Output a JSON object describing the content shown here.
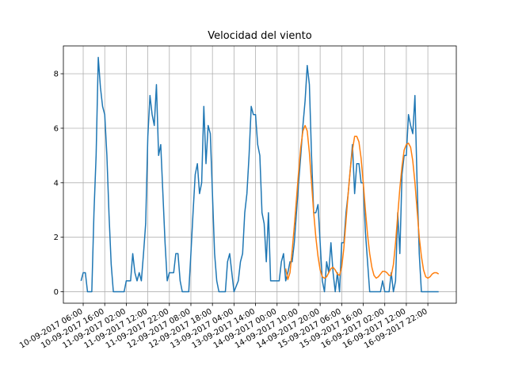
{
  "chart_data": {
    "type": "line",
    "title": "Velocidad del viento",
    "xlim": [
      "09-09-2017 20:48",
      "17-09-2017 11:12"
    ],
    "xticks": [
      "10-09-2017 06:00",
      "10-09-2017 16:00",
      "11-09-2017 02:00",
      "11-09-2017 12:00",
      "11-09-2017 22:00",
      "12-09-2017 08:00",
      "12-09-2017 18:00",
      "13-09-2017 04:00",
      "13-09-2017 14:00",
      "14-09-2017 00:00",
      "14-09-2017 10:00",
      "14-09-2017 20:00",
      "15-09-2017 06:00",
      "15-09-2017 16:00",
      "16-09-2017 02:00",
      "16-09-2017 12:00",
      "16-09-2017 22:00"
    ],
    "ylim": [
      -0.42,
      9.02
    ],
    "yticks": [
      0,
      2,
      4,
      6,
      8
    ],
    "grid": true,
    "series": [
      {
        "color": "#1f77b4",
        "x": [
          "10-09-2017 05:00",
          "10-09-2017 06:00",
          "10-09-2017 07:00",
          "10-09-2017 08:00",
          "10-09-2017 10:00",
          "10-09-2017 11:00",
          "10-09-2017 12:00",
          "10-09-2017 13:00",
          "10-09-2017 14:00",
          "10-09-2017 15:00",
          "10-09-2017 16:00",
          "10-09-2017 17:00",
          "10-09-2017 18:00",
          "10-09-2017 19:00",
          "10-09-2017 20:00",
          "11-09-2017 01:00",
          "11-09-2017 02:00",
          "11-09-2017 04:00",
          "11-09-2017 05:00",
          "11-09-2017 06:00",
          "11-09-2017 07:00",
          "11-09-2017 08:00",
          "11-09-2017 09:00",
          "11-09-2017 10:00",
          "11-09-2017 11:00",
          "11-09-2017 12:00",
          "11-09-2017 13:00",
          "11-09-2017 14:00",
          "11-09-2017 15:00",
          "11-09-2017 16:00",
          "11-09-2017 17:00",
          "11-09-2017 18:00",
          "11-09-2017 19:00",
          "11-09-2017 20:00",
          "11-09-2017 21:00",
          "11-09-2017 22:00",
          "12-09-2017 00:00",
          "12-09-2017 01:00",
          "12-09-2017 02:00",
          "12-09-2017 03:00",
          "12-09-2017 04:00",
          "12-09-2017 07:00",
          "12-09-2017 08:00",
          "12-09-2017 09:00",
          "12-09-2017 10:00",
          "12-09-2017 11:00",
          "12-09-2017 12:00",
          "12-09-2017 13:00",
          "12-09-2017 14:00",
          "12-09-2017 15:00",
          "12-09-2017 16:00",
          "12-09-2017 17:00",
          "12-09-2017 18:00",
          "12-09-2017 19:00",
          "12-09-2017 20:00",
          "12-09-2017 21:00",
          "13-09-2017 00:00",
          "13-09-2017 01:00",
          "13-09-2017 02:00",
          "13-09-2017 03:00",
          "13-09-2017 04:00",
          "13-09-2017 06:00",
          "13-09-2017 07:00",
          "13-09-2017 08:00",
          "13-09-2017 09:00",
          "13-09-2017 10:00",
          "13-09-2017 11:00",
          "13-09-2017 12:00",
          "13-09-2017 13:00",
          "13-09-2017 14:00",
          "13-09-2017 15:00",
          "13-09-2017 16:00",
          "13-09-2017 17:00",
          "13-09-2017 18:00",
          "13-09-2017 19:00",
          "13-09-2017 20:00",
          "13-09-2017 21:00",
          "14-09-2017 01:00",
          "14-09-2017 02:00",
          "14-09-2017 03:00",
          "14-09-2017 04:00",
          "14-09-2017 05:00",
          "14-09-2017 06:00",
          "14-09-2017 07:00",
          "14-09-2017 08:00",
          "14-09-2017 09:00",
          "14-09-2017 10:00",
          "14-09-2017 11:00",
          "14-09-2017 12:00",
          "14-09-2017 13:00",
          "14-09-2017 14:00",
          "14-09-2017 15:00",
          "14-09-2017 16:00",
          "14-09-2017 17:00",
          "14-09-2017 18:00",
          "14-09-2017 19:00",
          "14-09-2017 20:00",
          "14-09-2017 21:00",
          "14-09-2017 22:00",
          "14-09-2017 23:00",
          "15-09-2017 00:00",
          "15-09-2017 01:00",
          "15-09-2017 02:00",
          "15-09-2017 03:00",
          "15-09-2017 04:00",
          "15-09-2017 05:00",
          "15-09-2017 06:00",
          "15-09-2017 07:00",
          "15-09-2017 08:00",
          "15-09-2017 09:00",
          "15-09-2017 10:00",
          "15-09-2017 11:00",
          "15-09-2017 12:00",
          "15-09-2017 13:00",
          "15-09-2017 14:00",
          "15-09-2017 15:00",
          "15-09-2017 16:00",
          "15-09-2017 17:00",
          "15-09-2017 18:00",
          "15-09-2017 19:00",
          "16-09-2017 00:00",
          "16-09-2017 01:00",
          "16-09-2017 02:00",
          "16-09-2017 04:00",
          "16-09-2017 05:00",
          "16-09-2017 06:00",
          "16-09-2017 07:00",
          "16-09-2017 08:00",
          "16-09-2017 09:00",
          "16-09-2017 10:00",
          "16-09-2017 11:00",
          "16-09-2017 12:00",
          "16-09-2017 13:00",
          "16-09-2017 14:00",
          "16-09-2017 15:00",
          "16-09-2017 16:00",
          "16-09-2017 17:00",
          "16-09-2017 18:00",
          "16-09-2017 19:00",
          "17-09-2017 03:00"
        ],
        "values": [
          0.4,
          0.7,
          0.7,
          0,
          0,
          2.9,
          5.0,
          8.6,
          7.5,
          6.8,
          6.5,
          5.0,
          2.8,
          1.0,
          0,
          0,
          0.4,
          0.4,
          1.4,
          0.7,
          0.4,
          0.7,
          0.4,
          1.4,
          2.5,
          5.7,
          7.2,
          6.5,
          6.1,
          7.6,
          5.0,
          5.4,
          3.6,
          1.8,
          0.4,
          0.7,
          0.7,
          1.4,
          1.4,
          0.4,
          0,
          0,
          1.4,
          2.9,
          4.3,
          4.7,
          3.6,
          4.0,
          6.8,
          4.7,
          6.1,
          5.8,
          3.6,
          1.4,
          0.4,
          0,
          0,
          1.1,
          1.4,
          0.7,
          0,
          0.4,
          1.1,
          1.4,
          2.9,
          3.6,
          5.0,
          6.8,
          6.5,
          6.5,
          5.4,
          5.0,
          2.9,
          2.5,
          1.1,
          2.9,
          0.4,
          0.4,
          1.1,
          1.4,
          0.4,
          0.7,
          1.1,
          1.1,
          1.8,
          2.9,
          4.0,
          5.0,
          6.1,
          7.0,
          8.3,
          7.6,
          5.0,
          2.9,
          2.9,
          3.2,
          1.8,
          0.4,
          0,
          1.1,
          0.7,
          1.8,
          0.7,
          0,
          0.7,
          0,
          1.8,
          1.8,
          2.9,
          3.6,
          4.5,
          5.4,
          3.6,
          4.7,
          4.7,
          4.0,
          4.0,
          2.2,
          1.1,
          0,
          0,
          0.4,
          0,
          0,
          0.7,
          0,
          0.4,
          2.9,
          1.4,
          4.3,
          5.0,
          5.0,
          6.5,
          6.1,
          5.8,
          7.2,
          4.0,
          1.4,
          0,
          0
        ]
      },
      {
        "color": "#ff7f0e",
        "x": [
          "14-09-2017 04:00",
          "14-09-2017 05:00",
          "14-09-2017 06:00",
          "14-09-2017 07:00",
          "14-09-2017 08:00",
          "14-09-2017 09:00",
          "14-09-2017 10:00",
          "14-09-2017 11:00",
          "14-09-2017 12:00",
          "14-09-2017 13:00",
          "14-09-2017 14:00",
          "14-09-2017 15:00",
          "14-09-2017 16:00",
          "14-09-2017 17:00",
          "14-09-2017 18:00",
          "14-09-2017 19:00",
          "14-09-2017 20:00",
          "14-09-2017 21:00",
          "14-09-2017 22:00",
          "14-09-2017 23:00",
          "15-09-2017 00:00",
          "15-09-2017 01:00",
          "15-09-2017 02:00",
          "15-09-2017 03:00",
          "15-09-2017 04:00",
          "15-09-2017 05:00",
          "15-09-2017 06:00",
          "15-09-2017 07:00",
          "15-09-2017 08:00",
          "15-09-2017 09:00",
          "15-09-2017 10:00",
          "15-09-2017 11:00",
          "15-09-2017 12:00",
          "15-09-2017 13:00",
          "15-09-2017 14:00",
          "15-09-2017 15:00",
          "15-09-2017 16:00",
          "15-09-2017 17:00",
          "15-09-2017 18:00",
          "15-09-2017 19:00",
          "15-09-2017 20:00",
          "15-09-2017 21:00",
          "15-09-2017 22:00",
          "15-09-2017 23:00",
          "16-09-2017 00:00",
          "16-09-2017 01:00",
          "16-09-2017 02:00",
          "16-09-2017 03:00",
          "16-09-2017 04:00",
          "16-09-2017 05:00",
          "16-09-2017 06:00",
          "16-09-2017 07:00",
          "16-09-2017 08:00",
          "16-09-2017 09:00",
          "16-09-2017 10:00",
          "16-09-2017 11:00",
          "16-09-2017 12:00",
          "16-09-2017 13:00",
          "16-09-2017 14:00",
          "16-09-2017 15:00",
          "16-09-2017 16:00",
          "16-09-2017 17:00",
          "16-09-2017 18:00",
          "16-09-2017 19:00",
          "16-09-2017 20:00",
          "16-09-2017 21:00",
          "16-09-2017 22:00",
          "16-09-2017 23:00",
          "17-09-2017 00:00",
          "17-09-2017 01:00",
          "17-09-2017 02:00",
          "17-09-2017 03:00"
        ],
        "values": [
          0.85,
          0.45,
          0.7,
          1.5,
          2.4,
          3.4,
          4.4,
          5.3,
          5.9,
          6.1,
          5.9,
          5.1,
          4.0,
          2.9,
          2.0,
          1.3,
          0.8,
          0.55,
          0.5,
          0.55,
          0.7,
          0.85,
          0.9,
          0.8,
          0.65,
          0.6,
          0.9,
          1.6,
          2.6,
          3.6,
          4.5,
          5.2,
          5.7,
          5.7,
          5.5,
          4.9,
          4.0,
          3.0,
          2.1,
          1.4,
          0.9,
          0.6,
          0.5,
          0.55,
          0.65,
          0.75,
          0.75,
          0.7,
          0.6,
          0.6,
          1.0,
          1.8,
          2.8,
          3.8,
          4.6,
          5.2,
          5.4,
          5.45,
          5.3,
          4.8,
          4.0,
          3.0,
          2.0,
          1.3,
          0.8,
          0.55,
          0.5,
          0.55,
          0.65,
          0.7,
          0.7,
          0.65
        ]
      }
    ]
  }
}
